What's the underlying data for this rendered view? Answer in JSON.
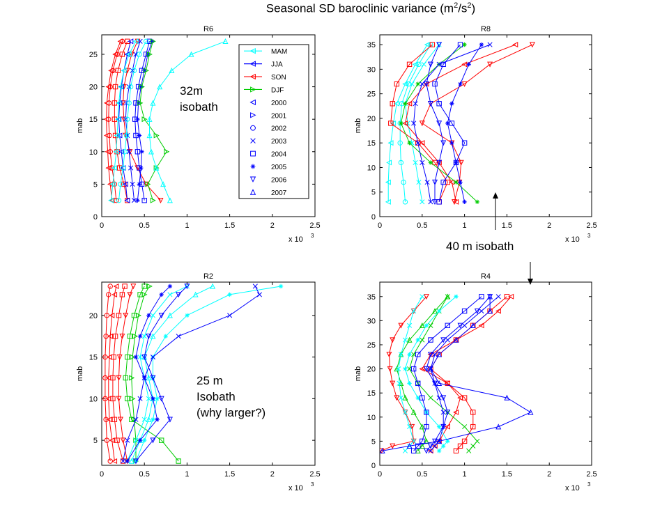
{
  "slide": {
    "title_main": "Seasonal SD baroclinic variance (m",
    "title_sup1": "2",
    "title_mid": "/s",
    "title_sup2": "2",
    "title_end": ")",
    "notes": {
      "r6_line1": "32m",
      "r6_line2": "isobath",
      "r8": "40 m isobath",
      "r2_line1": "25 m",
      "r2_line2": "Isobath",
      "r2_line3": "(why larger?)"
    }
  },
  "legend": {
    "entries": [
      {
        "label": "MAM",
        "kind": "line",
        "marker": "tri-left",
        "color": "#00ffff"
      },
      {
        "label": "JJA",
        "kind": "line",
        "marker": "tri-left",
        "color": "#0000ff"
      },
      {
        "label": "SON",
        "kind": "line",
        "marker": "tri-left",
        "color": "#ff0000"
      },
      {
        "label": "DJF",
        "kind": "line",
        "marker": "tri-right",
        "color": "#00cc00"
      },
      {
        "label": "2000",
        "kind": "marker",
        "marker": "tri-left",
        "color": "#0000ff"
      },
      {
        "label": "2001",
        "kind": "marker",
        "marker": "tri-right",
        "color": "#0000ff"
      },
      {
        "label": "2002",
        "kind": "marker",
        "marker": "circle",
        "color": "#0000ff"
      },
      {
        "label": "2003",
        "kind": "marker",
        "marker": "x",
        "color": "#0000ff"
      },
      {
        "label": "2004",
        "kind": "marker",
        "marker": "square",
        "color": "#0000ff"
      },
      {
        "label": "2005",
        "kind": "marker",
        "marker": "star",
        "color": "#0000ff"
      },
      {
        "label": "2006",
        "kind": "marker",
        "marker": "tri-down",
        "color": "#0000ff"
      },
      {
        "label": "2007",
        "kind": "marker",
        "marker": "tri-up",
        "color": "#0000ff"
      }
    ]
  },
  "chart_data": [
    {
      "id": "r6",
      "type": "line",
      "title": "R6",
      "ylabel": "mab",
      "xmultiplier": "x 10",
      "xmultiplier_exp": "3",
      "xlim": [
        0,
        2500
      ],
      "ylim": [
        0,
        28
      ],
      "xticks": [
        "0",
        "0.5",
        "1",
        "1.5",
        "2",
        "2.5"
      ],
      "xtick_values": [
        0,
        500,
        1000,
        1500,
        2000,
        2500
      ],
      "yticks": [
        "0",
        "5",
        "10",
        "15",
        "20",
        "25"
      ],
      "ytick_values": [
        0,
        5,
        10,
        15,
        20,
        25
      ],
      "y": [
        2.5,
        5,
        7.5,
        10,
        12.5,
        15,
        17.5,
        20,
        22.5,
        25,
        27
      ],
      "series": [
        {
          "color": "#ff0000",
          "marker": "tri-left",
          "x": [
            120,
            100,
            80,
            70,
            60,
            55,
            60,
            80,
            110,
            160,
            220
          ]
        },
        {
          "color": "#ff0000",
          "marker": "circle",
          "x": [
            170,
            150,
            120,
            100,
            90,
            80,
            85,
            100,
            130,
            180,
            240
          ]
        },
        {
          "color": "#ff0000",
          "marker": "square",
          "x": [
            300,
            260,
            210,
            180,
            160,
            150,
            150,
            160,
            190,
            240,
            300
          ]
        },
        {
          "color": "#ff0000",
          "marker": "tri-down",
          "x": [
            690,
            520,
            420,
            330,
            280,
            260,
            250,
            260,
            300,
            350,
            420
          ]
        },
        {
          "color": "#0000ff",
          "marker": "tri-left",
          "x": [
            300,
            280,
            250,
            230,
            210,
            200,
            210,
            230,
            260,
            300,
            340
          ]
        },
        {
          "color": "#0000ff",
          "marker": "x",
          "x": [
            380,
            360,
            340,
            320,
            300,
            280,
            290,
            320,
            360,
            400,
            450
          ]
        },
        {
          "color": "#0000ff",
          "marker": "square",
          "x": [
            500,
            470,
            440,
            420,
            400,
            390,
            400,
            430,
            470,
            520,
            560
          ]
        },
        {
          "color": "#0000ff",
          "marker": "star",
          "x": [
            420,
            440,
            460,
            470,
            440,
            420,
            430,
            460,
            500,
            540,
            590
          ]
        },
        {
          "color": "#00cc00",
          "marker": "tri-right",
          "x": [
            600,
            540,
            640,
            760,
            640,
            500,
            450,
            470,
            520,
            560,
            600
          ]
        },
        {
          "color": "#00ffff",
          "marker": "tri-left",
          "x": [
            110,
            130,
            150,
            170,
            180,
            190,
            200,
            220,
            260,
            320,
            400
          ]
        },
        {
          "color": "#00ffff",
          "marker": "circle",
          "x": [
            200,
            220,
            250,
            270,
            290,
            300,
            320,
            340,
            380,
            440,
            520
          ]
        },
        {
          "color": "#00ffff",
          "marker": "tri-up",
          "x": [
            800,
            720,
            640,
            580,
            560,
            560,
            600,
            680,
            820,
            1050,
            1450
          ]
        }
      ]
    },
    {
      "id": "r8",
      "type": "line",
      "title": "R8",
      "ylabel": "mab",
      "xmultiplier": "x 10",
      "xmultiplier_exp": "3",
      "xlim": [
        0,
        2500
      ],
      "ylim": [
        0,
        37
      ],
      "xticks": [
        "0",
        "0.5",
        "1",
        "1.5",
        "2",
        "2.5"
      ],
      "xtick_values": [
        0,
        500,
        1000,
        1500,
        2000,
        2500
      ],
      "yticks": [
        "0",
        "5",
        "10",
        "15",
        "20",
        "25",
        "30",
        "35"
      ],
      "ytick_values": [
        0,
        5,
        10,
        15,
        20,
        25,
        30,
        35
      ],
      "y": [
        3,
        7,
        11,
        15,
        19,
        23,
        27,
        31,
        35
      ],
      "series": [
        {
          "color": "#00ffff",
          "marker": "tri-left",
          "x": [
            100,
            100,
            110,
            130,
            160,
            200,
            300,
            420,
            560
          ]
        },
        {
          "color": "#00ffff",
          "marker": "circle",
          "x": [
            300,
            280,
            250,
            240,
            240,
            260,
            340,
            460,
            600
          ]
        },
        {
          "color": "#00ffff",
          "marker": "x",
          "x": [
            500,
            460,
            420,
            380,
            330,
            300,
            380,
            520,
            700
          ]
        },
        {
          "color": "#ff0000",
          "marker": "square",
          "x": [
            700,
            800,
            650,
            450,
            130,
            150,
            200,
            350,
            620
          ]
        },
        {
          "color": "#ff0000",
          "marker": "tri-left",
          "x": [
            900,
            850,
            700,
            500,
            300,
            350,
            550,
            1000,
            1600
          ]
        },
        {
          "color": "#ff0000",
          "marker": "tri-down",
          "x": [
            880,
            940,
            960,
            850,
            500,
            600,
            1000,
            1300,
            1800
          ]
        },
        {
          "color": "#00cc00",
          "marker": "star",
          "x": [
            1150,
            900,
            600,
            350,
            250,
            300,
            450,
            700,
            1000
          ]
        },
        {
          "color": "#0000ff",
          "marker": "tri-down",
          "x": [
            650,
            650,
            700,
            750,
            700,
            600,
            550,
            600,
            700
          ]
        },
        {
          "color": "#0000ff",
          "marker": "square",
          "x": [
            700,
            750,
            900,
            1000,
            850,
            700,
            650,
            750,
            950
          ]
        },
        {
          "color": "#0000ff",
          "marker": "star",
          "x": [
            1000,
            950,
            900,
            850,
            800,
            850,
            950,
            1050,
            1200
          ]
        },
        {
          "color": "#0000ff",
          "marker": "x",
          "x": [
            600,
            560,
            500,
            450,
            400,
            420,
            500,
            700,
            1300
          ]
        }
      ]
    },
    {
      "id": "r2",
      "type": "line",
      "title": "R2",
      "ylabel": "mab",
      "xmultiplier": "x 10",
      "xmultiplier_exp": "3",
      "xlim": [
        0,
        2500
      ],
      "ylim": [
        2,
        24
      ],
      "xticks": [
        "0",
        "0.5",
        "1",
        "1.5",
        "2",
        "2.5"
      ],
      "xtick_values": [
        0,
        500,
        1000,
        1500,
        2000,
        2500
      ],
      "yticks": [
        "5",
        "10",
        "15",
        "20"
      ],
      "ytick_values": [
        5,
        10,
        15,
        20
      ],
      "y": [
        2.5,
        5,
        7.5,
        10,
        12.5,
        15,
        17.5,
        20,
        22.5,
        23.5
      ],
      "series": [
        {
          "color": "#ff0000",
          "marker": "circle",
          "x": [
            100,
            60,
            50,
            40,
            40,
            40,
            50,
            60,
            80,
            100
          ]
        },
        {
          "color": "#ff0000",
          "marker": "tri-left",
          "x": [
            150,
            120,
            90,
            80,
            80,
            90,
            100,
            120,
            150,
            170
          ]
        },
        {
          "color": "#ff0000",
          "marker": "square",
          "x": [
            250,
            180,
            150,
            130,
            130,
            140,
            160,
            200,
            240,
            270
          ]
        },
        {
          "color": "#ff0000",
          "marker": "tri-down",
          "x": [
            300,
            250,
            220,
            200,
            200,
            210,
            240,
            280,
            330,
            370
          ]
        },
        {
          "color": "#00cc00",
          "marker": "square",
          "x": [
            900,
            700,
            350,
            300,
            280,
            300,
            330,
            380,
            450,
            500
          ]
        },
        {
          "color": "#00cc00",
          "marker": "tri-right",
          "x": [
            400,
            400,
            380,
            360,
            350,
            360,
            390,
            430,
            500,
            560
          ]
        },
        {
          "color": "#00ffff",
          "marker": "x",
          "x": [
            300,
            400,
            500,
            550,
            500,
            450,
            500,
            600,
            800,
            1000
          ]
        },
        {
          "color": "#00ffff",
          "marker": "tri-up",
          "x": [
            350,
            450,
            550,
            600,
            550,
            500,
            600,
            800,
            1100,
            1300
          ]
        },
        {
          "color": "#00ffff",
          "marker": "star",
          "x": [
            400,
            500,
            600,
            650,
            600,
            600,
            750,
            1000,
            1500,
            2100
          ]
        },
        {
          "color": "#0000ff",
          "marker": "tri-down",
          "x": [
            400,
            600,
            800,
            700,
            600,
            500,
            550,
            700,
            900,
            1000
          ]
        },
        {
          "color": "#0000ff",
          "marker": "star",
          "x": [
            300,
            450,
            650,
            600,
            500,
            400,
            450,
            550,
            700,
            800
          ]
        },
        {
          "color": "#0000ff",
          "marker": "x",
          "x": [
            250,
            300,
            400,
            450,
            500,
            600,
            900,
            1500,
            1850,
            1800
          ]
        }
      ]
    },
    {
      "id": "r4",
      "type": "line",
      "title": "R4",
      "ylabel": "mab",
      "xmultiplier": "x 10",
      "xmultiplier_exp": "3",
      "xlim": [
        0,
        2500
      ],
      "ylim": [
        0,
        38
      ],
      "xticks": [
        "0",
        "0.5",
        "1",
        "1.5",
        "2",
        "2.5"
      ],
      "xtick_values": [
        0,
        500,
        1000,
        1500,
        2000,
        2500
      ],
      "yticks": [
        "0",
        "5",
        "10",
        "15",
        "20",
        "25",
        "30",
        "35"
      ],
      "ytick_values": [
        0,
        5,
        10,
        15,
        20,
        25,
        30,
        35
      ],
      "y": [
        3,
        4,
        5,
        8,
        11,
        14,
        17,
        20,
        23,
        26,
        29,
        32,
        35
      ],
      "series": [
        {
          "color": "#ff0000",
          "marker": "tri-down",
          "x": [
            20,
            150,
            400,
            380,
            300,
            200,
            150,
            120,
            110,
            150,
            250,
            400,
            550
          ]
        },
        {
          "color": "#ff0000",
          "marker": "tri-left",
          "x": [
            600,
            650,
            700,
            800,
            900,
            950,
            800,
            500,
            600,
            900,
            1200,
            1400,
            1550
          ]
        },
        {
          "color": "#ff0000",
          "marker": "square",
          "x": [
            900,
            950,
            1000,
            1100,
            1100,
            1000,
            800,
            600,
            700,
            900,
            1100,
            1300,
            1500
          ]
        },
        {
          "color": "#00cc00",
          "marker": "tri-up",
          "x": [
            450,
            500,
            550,
            500,
            400,
            300,
            250,
            200,
            250,
            350,
            500,
            650,
            800
          ]
        },
        {
          "color": "#00cc00",
          "marker": "x",
          "x": [
            1050,
            1100,
            1150,
            1000,
            800,
            600,
            450,
            350,
            400,
            500,
            600,
            700,
            800
          ]
        },
        {
          "color": "#00ffff",
          "marker": "star",
          "x": [
            700,
            750,
            800,
            700,
            550,
            450,
            350,
            300,
            350,
            450,
            550,
            700,
            900
          ]
        },
        {
          "color": "#00ffff",
          "marker": "x",
          "x": [
            300,
            350,
            400,
            350,
            300,
            250,
            230,
            220,
            250,
            300,
            350,
            400,
            500
          ]
        },
        {
          "color": "#0000ff",
          "marker": "tri-up",
          "x": [
            30,
            350,
            700,
            1400,
            1780,
            1500,
            700,
            600,
            700,
            900,
            1100,
            1300,
            1300
          ]
        },
        {
          "color": "#0000ff",
          "marker": "x",
          "x": [
            600,
            650,
            700,
            750,
            750,
            700,
            650,
            600,
            650,
            800,
            1000,
            1200,
            1400
          ]
        },
        {
          "color": "#0000ff",
          "marker": "tri-down",
          "x": [
            550,
            600,
            650,
            750,
            800,
            750,
            650,
            550,
            600,
            750,
            950,
            1150,
            1300
          ]
        },
        {
          "color": "#0000ff",
          "marker": "square",
          "x": [
            400,
            450,
            500,
            550,
            550,
            500,
            450,
            400,
            450,
            600,
            800,
            1000,
            1200
          ]
        }
      ]
    }
  ]
}
